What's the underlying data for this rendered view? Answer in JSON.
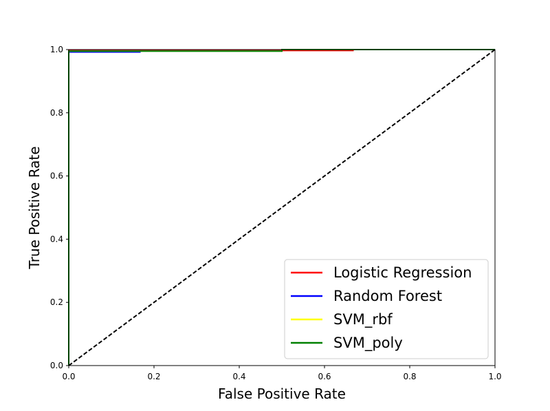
{
  "chart_data": {
    "type": "line",
    "title": "",
    "xlabel": "False Positive Rate",
    "ylabel": "True Positive Rate",
    "xlim": [
      0.0,
      1.0
    ],
    "ylim": [
      0.0,
      1.0
    ],
    "xticks": [
      "0.0",
      "0.2",
      "0.4",
      "0.6",
      "0.8",
      "1.0"
    ],
    "yticks": [
      "0.0",
      "0.2",
      "0.4",
      "0.6",
      "0.8",
      "1.0"
    ],
    "grid": false,
    "legend_position": "lower-right",
    "series": [
      {
        "name": "Logistic Regression",
        "color": "#ff0000",
        "points": [
          [
            0.0,
            0.0
          ],
          [
            0.0,
            0.997
          ],
          [
            0.667,
            0.997
          ],
          [
            0.667,
            1.0
          ],
          [
            1.0,
            1.0
          ]
        ]
      },
      {
        "name": "Random Forest",
        "color": "#0000ff",
        "points": [
          [
            0.0,
            0.0
          ],
          [
            0.0,
            0.992
          ],
          [
            0.167,
            0.992
          ],
          [
            0.167,
            0.995
          ],
          [
            0.5,
            0.995
          ],
          [
            0.5,
            1.0
          ],
          [
            1.0,
            1.0
          ]
        ]
      },
      {
        "name": "SVM_rbf",
        "color": "#ffff00",
        "points": [
          [
            0.0,
            0.0
          ],
          [
            0.0,
            0.995
          ],
          [
            0.5,
            0.995
          ],
          [
            0.5,
            1.0
          ],
          [
            1.0,
            1.0
          ]
        ]
      },
      {
        "name": "SVM_poly",
        "color": "#008000",
        "points": [
          [
            0.0,
            0.0
          ],
          [
            0.0,
            0.995
          ],
          [
            0.5,
            0.995
          ],
          [
            0.5,
            1.0
          ],
          [
            1.0,
            1.0
          ]
        ]
      }
    ],
    "reference_line": {
      "color": "#000000",
      "style": "dashed",
      "points": [
        [
          0.0,
          0.0
        ],
        [
          1.0,
          1.0
        ]
      ]
    }
  }
}
